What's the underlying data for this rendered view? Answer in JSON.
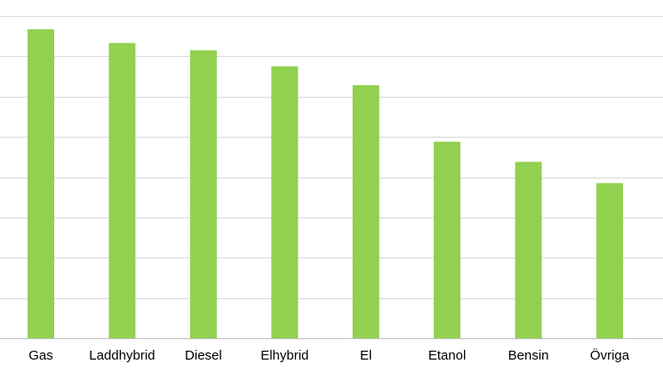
{
  "chart_data": {
    "type": "bar",
    "categories": [
      "Gas",
      "Laddhybrid",
      "Diesel",
      "Elhybrid",
      "El",
      "Etanol",
      "Bensin",
      "Övriga"
    ],
    "values": [
      7.67,
      7.33,
      7.15,
      6.75,
      6.28,
      4.88,
      4.38,
      3.85
    ],
    "ylim": [
      0,
      8
    ],
    "grid": true,
    "legend": "none",
    "bar_color": "#92d050",
    "grid_color": "#d9d9d9",
    "axis_color": "#bfbfbf"
  }
}
